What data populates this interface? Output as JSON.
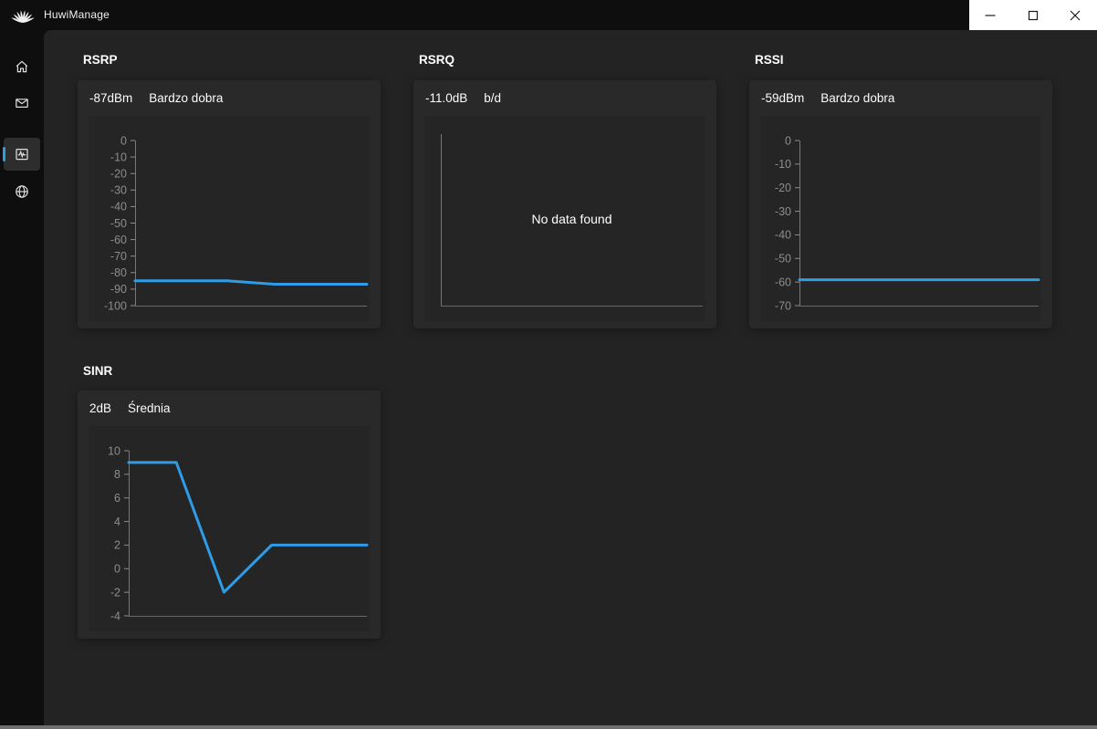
{
  "colors": {
    "accent": "#2f9ce8",
    "titlebar_bg": "#0e0e0e",
    "panel_bg": "#232323",
    "card_bg": "#292929",
    "chart_bg": "#252525",
    "axis_label": "#8d8d8d"
  },
  "titlebar": {
    "app_name": "HuwiManage"
  },
  "sidebar": {
    "items": [
      {
        "id": "home",
        "icon": "home-icon",
        "selected": false
      },
      {
        "id": "mail",
        "icon": "mail-icon",
        "selected": false
      },
      {
        "id": "signal",
        "icon": "signal-chart-icon",
        "selected": true
      },
      {
        "id": "network",
        "icon": "globe-icon",
        "selected": false
      }
    ],
    "footer": {
      "id": "settings",
      "icon": "gear-icon"
    }
  },
  "cards": [
    {
      "id": "rsrp",
      "title": "RSRP",
      "value": "-87dBm",
      "quality": "Bardzo dobra"
    },
    {
      "id": "rsrq",
      "title": "RSRQ",
      "value": "-11.0dB",
      "quality": "b/d"
    },
    {
      "id": "rssi",
      "title": "RSSI",
      "value": "-59dBm",
      "quality": "Bardzo dobra"
    },
    {
      "id": "sinr",
      "title": "SINR",
      "value": "2dB",
      "quality": "Średnia"
    }
  ],
  "chart_data": [
    {
      "id": "rsrp",
      "type": "line",
      "title": "RSRP",
      "x": [
        0,
        0.2,
        0.4,
        0.6,
        0.8,
        1.0
      ],
      "values": [
        -85,
        -85,
        -85,
        -87,
        -87,
        -87
      ],
      "ylim": [
        -100,
        0
      ],
      "yticks": [
        0,
        -10,
        -20,
        -30,
        -40,
        -50,
        -60,
        -70,
        -80,
        -90,
        -100
      ],
      "line_color": "#2f9ce8",
      "grid": false,
      "legend": false,
      "axis_offset": 51
    },
    {
      "id": "rsrq",
      "type": "line",
      "title": "RSRQ",
      "x": [],
      "values": [],
      "empty_text": "No data found",
      "ylim": null,
      "yticks": [],
      "grid": false,
      "legend": false,
      "axis_offset": 18
    },
    {
      "id": "rssi",
      "type": "line",
      "title": "RSSI",
      "x": [
        0,
        0.2,
        0.4,
        0.6,
        0.8,
        1.0
      ],
      "values": [
        -59,
        -59,
        -59,
        -59,
        -59,
        -59
      ],
      "ylim": [
        -70,
        0
      ],
      "yticks": [
        0,
        -10,
        -20,
        -30,
        -40,
        -50,
        -60,
        -70
      ],
      "line_color": "#2f9ce8",
      "grid": false,
      "legend": false,
      "axis_offset": 43
    },
    {
      "id": "sinr",
      "type": "line",
      "title": "SINR",
      "x": [
        0,
        0.2,
        0.4,
        0.6,
        0.8,
        1.0
      ],
      "values": [
        9,
        9,
        -2,
        2,
        2,
        2
      ],
      "ylim": [
        -4,
        10
      ],
      "yticks": [
        10,
        8,
        6,
        4,
        2,
        0,
        -2,
        -4
      ],
      "line_color": "#2f9ce8",
      "grid": false,
      "legend": false,
      "axis_offset": 44
    }
  ]
}
